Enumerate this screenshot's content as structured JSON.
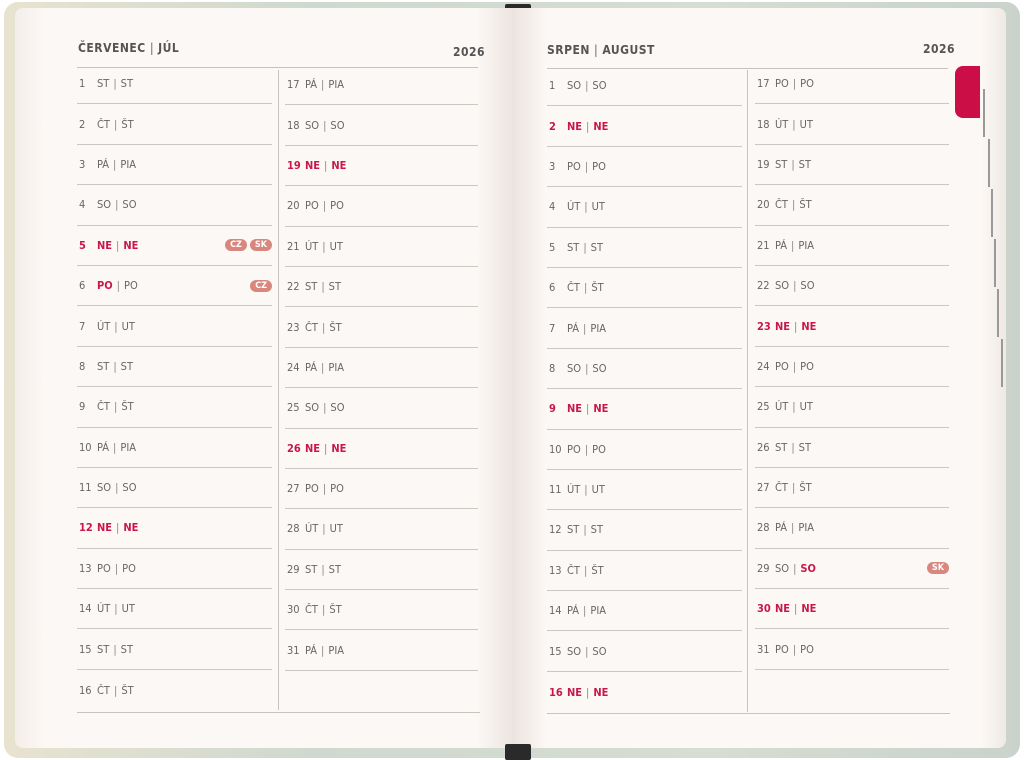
{
  "left": {
    "month": "ČERVENEC",
    "month2": "JÚL",
    "year": "2026",
    "col1": [
      {
        "d": "1",
        "a": "ST",
        "b": "ST"
      },
      {
        "d": "2",
        "a": "ČT",
        "b": "ŠT"
      },
      {
        "d": "3",
        "a": "PÁ",
        "b": "PIA"
      },
      {
        "d": "4",
        "a": "SO",
        "b": "SO"
      },
      {
        "d": "5",
        "a": "NE",
        "b": "NE",
        "red": "all",
        "badges": [
          "CZ",
          "SK"
        ]
      },
      {
        "d": "6",
        "a": "PO",
        "b": "PO",
        "red": "a",
        "badges": [
          "CZ"
        ]
      },
      {
        "d": "7",
        "a": "ÚT",
        "b": "UT"
      },
      {
        "d": "8",
        "a": "ST",
        "b": "ST"
      },
      {
        "d": "9",
        "a": "ČT",
        "b": "ŠT"
      },
      {
        "d": "10",
        "a": "PÁ",
        "b": "PIA"
      },
      {
        "d": "11",
        "a": "SO",
        "b": "SO"
      },
      {
        "d": "12",
        "a": "NE",
        "b": "NE",
        "red": "all"
      },
      {
        "d": "13",
        "a": "PO",
        "b": "PO"
      },
      {
        "d": "14",
        "a": "ÚT",
        "b": "UT"
      },
      {
        "d": "15",
        "a": "ST",
        "b": "ST"
      },
      {
        "d": "16",
        "a": "ČT",
        "b": "ŠT"
      }
    ],
    "col2": [
      {
        "d": "17",
        "a": "PÁ",
        "b": "PIA"
      },
      {
        "d": "18",
        "a": "SO",
        "b": "SO"
      },
      {
        "d": "19",
        "a": "NE",
        "b": "NE",
        "red": "all"
      },
      {
        "d": "20",
        "a": "PO",
        "b": "PO"
      },
      {
        "d": "21",
        "a": "ÚT",
        "b": "UT"
      },
      {
        "d": "22",
        "a": "ST",
        "b": "ST"
      },
      {
        "d": "23",
        "a": "ČT",
        "b": "ŠT"
      },
      {
        "d": "24",
        "a": "PÁ",
        "b": "PIA"
      },
      {
        "d": "25",
        "a": "SO",
        "b": "SO"
      },
      {
        "d": "26",
        "a": "NE",
        "b": "NE",
        "red": "all"
      },
      {
        "d": "27",
        "a": "PO",
        "b": "PO"
      },
      {
        "d": "28",
        "a": "ÚT",
        "b": "UT"
      },
      {
        "d": "29",
        "a": "ST",
        "b": "ST"
      },
      {
        "d": "30",
        "a": "ČT",
        "b": "ŠT"
      },
      {
        "d": "31",
        "a": "PÁ",
        "b": "PIA"
      }
    ]
  },
  "right": {
    "month": "SRPEN",
    "month2": "AUGUST",
    "year": "2026",
    "col1": [
      {
        "d": "1",
        "a": "SO",
        "b": "SO"
      },
      {
        "d": "2",
        "a": "NE",
        "b": "NE",
        "red": "all"
      },
      {
        "d": "3",
        "a": "PO",
        "b": "PO"
      },
      {
        "d": "4",
        "a": "ÚT",
        "b": "UT"
      },
      {
        "d": "5",
        "a": "ST",
        "b": "ST"
      },
      {
        "d": "6",
        "a": "ČT",
        "b": "ŠT"
      },
      {
        "d": "7",
        "a": "PÁ",
        "b": "PIA"
      },
      {
        "d": "8",
        "a": "SO",
        "b": "SO"
      },
      {
        "d": "9",
        "a": "NE",
        "b": "NE",
        "red": "all"
      },
      {
        "d": "10",
        "a": "PO",
        "b": "PO"
      },
      {
        "d": "11",
        "a": "ÚT",
        "b": "UT"
      },
      {
        "d": "12",
        "a": "ST",
        "b": "ST"
      },
      {
        "d": "13",
        "a": "ČT",
        "b": "ŠT"
      },
      {
        "d": "14",
        "a": "PÁ",
        "b": "PIA"
      },
      {
        "d": "15",
        "a": "SO",
        "b": "SO"
      },
      {
        "d": "16",
        "a": "NE",
        "b": "NE",
        "red": "all"
      }
    ],
    "col2": [
      {
        "d": "17",
        "a": "PO",
        "b": "PO"
      },
      {
        "d": "18",
        "a": "ÚT",
        "b": "UT"
      },
      {
        "d": "19",
        "a": "ST",
        "b": "ST"
      },
      {
        "d": "20",
        "a": "ČT",
        "b": "ŠT"
      },
      {
        "d": "21",
        "a": "PÁ",
        "b": "PIA"
      },
      {
        "d": "22",
        "a": "SO",
        "b": "SO"
      },
      {
        "d": "23",
        "a": "NE",
        "b": "NE",
        "red": "all"
      },
      {
        "d": "24",
        "a": "PO",
        "b": "PO"
      },
      {
        "d": "25",
        "a": "ÚT",
        "b": "UT"
      },
      {
        "d": "26",
        "a": "ST",
        "b": "ST"
      },
      {
        "d": "27",
        "a": "ČT",
        "b": "ŠT"
      },
      {
        "d": "28",
        "a": "PÁ",
        "b": "PIA"
      },
      {
        "d": "29",
        "a": "SO",
        "b": "SO",
        "red": "b",
        "badges": [
          "SK"
        ]
      },
      {
        "d": "30",
        "a": "NE",
        "b": "NE",
        "red": "all"
      },
      {
        "d": "31",
        "a": "PO",
        "b": "PO"
      }
    ]
  },
  "colors": {
    "holiday": "#c8174a",
    "badge": "#d9877e",
    "tab": "#cc0e46"
  }
}
